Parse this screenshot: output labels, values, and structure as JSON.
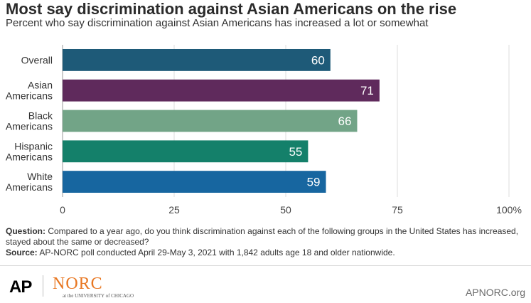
{
  "title": "Most say discrimination against Asian Americans on the rise",
  "subtitle": "Percent who say discrimination against Asian Americans has increased a lot or somewhat",
  "chart_data": {
    "type": "bar",
    "orientation": "horizontal",
    "categories": [
      [
        "Overall"
      ],
      [
        "Asian",
        "Americans"
      ],
      [
        "Black",
        "Americans"
      ],
      [
        "Hispanic",
        "Americans"
      ],
      [
        "White",
        "Americans"
      ]
    ],
    "values": [
      60,
      71,
      66,
      55,
      59
    ],
    "colors": [
      "#1e5a78",
      "#5f2a5c",
      "#72a487",
      "#14806a",
      "#1766a0"
    ],
    "value_labels": [
      "60",
      "71",
      "66",
      "55",
      "59"
    ],
    "xlim": [
      0,
      100
    ],
    "x_ticks": [
      0,
      25,
      50,
      75,
      100
    ],
    "x_tick_labels": [
      "0",
      "25",
      "50",
      "75",
      "100%"
    ],
    "grid": true
  },
  "notes": {
    "question_label": "Question:",
    "question_text": " Compared to a year ago, do you think discrimination against each of the following groups in the United States has increased, stayed about the same or decreased?",
    "source_label": "Source:",
    "source_text": " AP-NORC poll conducted April 29-May 3, 2021 with 1,842 adults age 18 and older nationwide."
  },
  "footer": {
    "ap_logo": "AP",
    "norc_logo": "NORC",
    "norc_sub": "at the UNIVERSITY of CHICAGO",
    "site": "APNORC.org"
  }
}
